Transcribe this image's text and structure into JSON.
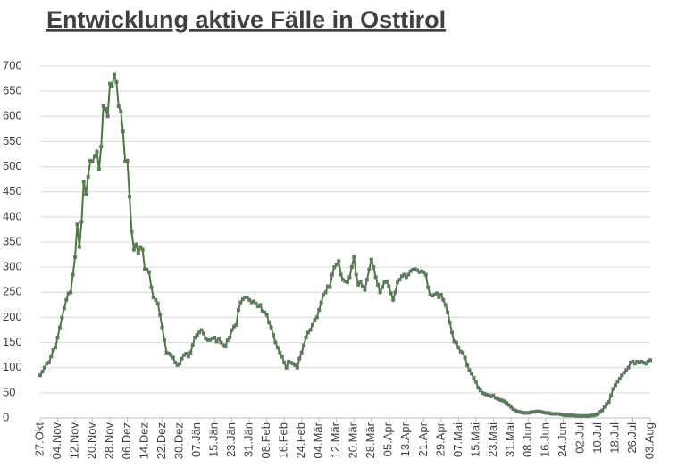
{
  "chart_data": {
    "type": "line",
    "title": "Entwicklung aktive Fälle in Osttirol",
    "categories": [
      "27.Okt",
      null,
      null,
      null,
      null,
      null,
      null,
      null,
      "04.Nov",
      null,
      null,
      null,
      null,
      null,
      null,
      null,
      "12.Nov",
      null,
      null,
      null,
      null,
      null,
      null,
      null,
      "20.Nov",
      null,
      null,
      null,
      null,
      null,
      null,
      null,
      "28.Nov",
      null,
      null,
      null,
      null,
      null,
      null,
      null,
      "06.Dez",
      null,
      null,
      null,
      null,
      null,
      null,
      null,
      "14.Dez",
      null,
      null,
      null,
      null,
      null,
      null,
      null,
      "22.Dez",
      null,
      null,
      null,
      null,
      null,
      null,
      null,
      "30.Dez",
      null,
      null,
      null,
      null,
      null,
      null,
      null,
      "07.Jän",
      null,
      null,
      null,
      null,
      null,
      null,
      null,
      "15.Jän",
      null,
      null,
      null,
      null,
      null,
      null,
      null,
      "23.Jän",
      null,
      null,
      null,
      null,
      null,
      null,
      null,
      "31.Jän",
      null,
      null,
      null,
      null,
      null,
      null,
      null,
      "08.Feb",
      null,
      null,
      null,
      null,
      null,
      null,
      null,
      "16.Feb",
      null,
      null,
      null,
      null,
      null,
      null,
      null,
      "24.Feb",
      null,
      null,
      null,
      null,
      null,
      null,
      null,
      "04.Mär",
      null,
      null,
      null,
      null,
      null,
      null,
      null,
      "12.Mär",
      null,
      null,
      null,
      null,
      null,
      null,
      null,
      "20.Mär",
      null,
      null,
      null,
      null,
      null,
      null,
      null,
      "28.Mär",
      null,
      null,
      null,
      null,
      null,
      null,
      null,
      "05.Apr",
      null,
      null,
      null,
      null,
      null,
      null,
      null,
      "13.Apr",
      null,
      null,
      null,
      null,
      null,
      null,
      null,
      "21.Apr",
      null,
      null,
      null,
      null,
      null,
      null,
      null,
      "29.Apr",
      null,
      null,
      null,
      null,
      null,
      null,
      null,
      "07.Mai",
      null,
      null,
      null,
      null,
      null,
      null,
      null,
      "15.Mai",
      null,
      null,
      null,
      null,
      null,
      null,
      null,
      "23.Mai",
      null,
      null,
      null,
      null,
      null,
      null,
      null,
      "31.Mai",
      null,
      null,
      null,
      null,
      null,
      null,
      null,
      "08.Jun",
      null,
      null,
      null,
      null,
      null,
      null,
      null,
      "16.Jun",
      null,
      null,
      null,
      null,
      null,
      null,
      null,
      "24.Jun",
      null,
      null,
      null,
      null,
      null,
      null,
      null,
      "02.Jul",
      null,
      null,
      null,
      null,
      null,
      null,
      null,
      "10.Jul",
      null,
      null,
      null,
      null,
      null,
      null,
      null,
      "18.Jul",
      null,
      null,
      null,
      null,
      null,
      null,
      null,
      "26.Jul",
      null,
      null,
      null,
      null,
      null,
      null,
      null,
      "03.Aug"
    ],
    "values": [
      85,
      92,
      100,
      108,
      110,
      122,
      135,
      140,
      160,
      180,
      200,
      218,
      235,
      248,
      250,
      285,
      320,
      385,
      340,
      390,
      470,
      445,
      480,
      512,
      510,
      520,
      530,
      495,
      540,
      620,
      615,
      600,
      665,
      660,
      683,
      668,
      620,
      610,
      570,
      510,
      512,
      440,
      370,
      335,
      345,
      328,
      340,
      335,
      296,
      295,
      290,
      260,
      240,
      235,
      228,
      205,
      180,
      155,
      130,
      128,
      125,
      120,
      110,
      105,
      108,
      118,
      125,
      128,
      122,
      130,
      145,
      160,
      165,
      170,
      175,
      168,
      158,
      155,
      155,
      158,
      160,
      152,
      158,
      150,
      145,
      142,
      155,
      160,
      175,
      182,
      185,
      215,
      230,
      236,
      240,
      240,
      235,
      230,
      232,
      228,
      222,
      225,
      212,
      210,
      205,
      190,
      180,
      165,
      150,
      140,
      130,
      122,
      110,
      100,
      112,
      110,
      108,
      105,
      100,
      118,
      130,
      145,
      160,
      170,
      175,
      185,
      195,
      200,
      215,
      230,
      245,
      250,
      262,
      260,
      285,
      300,
      305,
      312,
      285,
      275,
      272,
      270,
      280,
      300,
      320,
      285,
      265,
      270,
      262,
      255,
      275,
      295,
      315,
      300,
      280,
      265,
      250,
      260,
      270,
      272,
      262,
      248,
      235,
      250,
      270,
      275,
      282,
      285,
      280,
      285,
      292,
      295,
      296,
      294,
      290,
      292,
      290,
      285,
      260,
      245,
      243,
      245,
      248,
      240,
      245,
      235,
      225,
      210,
      190,
      170,
      152,
      150,
      140,
      132,
      130,
      120,
      105,
      95,
      88,
      80,
      72,
      60,
      55,
      50,
      48,
      46,
      45,
      43,
      45,
      40,
      38,
      36,
      35,
      33,
      30,
      26,
      22,
      18,
      15,
      13,
      12,
      11,
      10,
      10,
      10,
      11,
      12,
      12,
      13,
      13,
      12,
      11,
      10,
      10,
      9,
      8,
      8,
      8,
      8,
      7,
      6,
      5,
      5,
      5,
      5,
      5,
      4,
      4,
      4,
      4,
      4,
      4,
      4,
      5,
      5,
      6,
      8,
      12,
      15,
      22,
      28,
      32,
      45,
      58,
      65,
      72,
      78,
      85,
      90,
      95,
      100,
      110,
      112,
      108,
      112,
      110,
      112,
      110,
      108,
      112,
      115
    ],
    "color": "#4d7a3c",
    "marker_color": "#5b7a5e",
    "ylim": [
      0,
      700
    ],
    "yticks": [
      0,
      50,
      100,
      150,
      200,
      250,
      300,
      350,
      400,
      450,
      500,
      550,
      600,
      650,
      700
    ],
    "grid": true
  }
}
